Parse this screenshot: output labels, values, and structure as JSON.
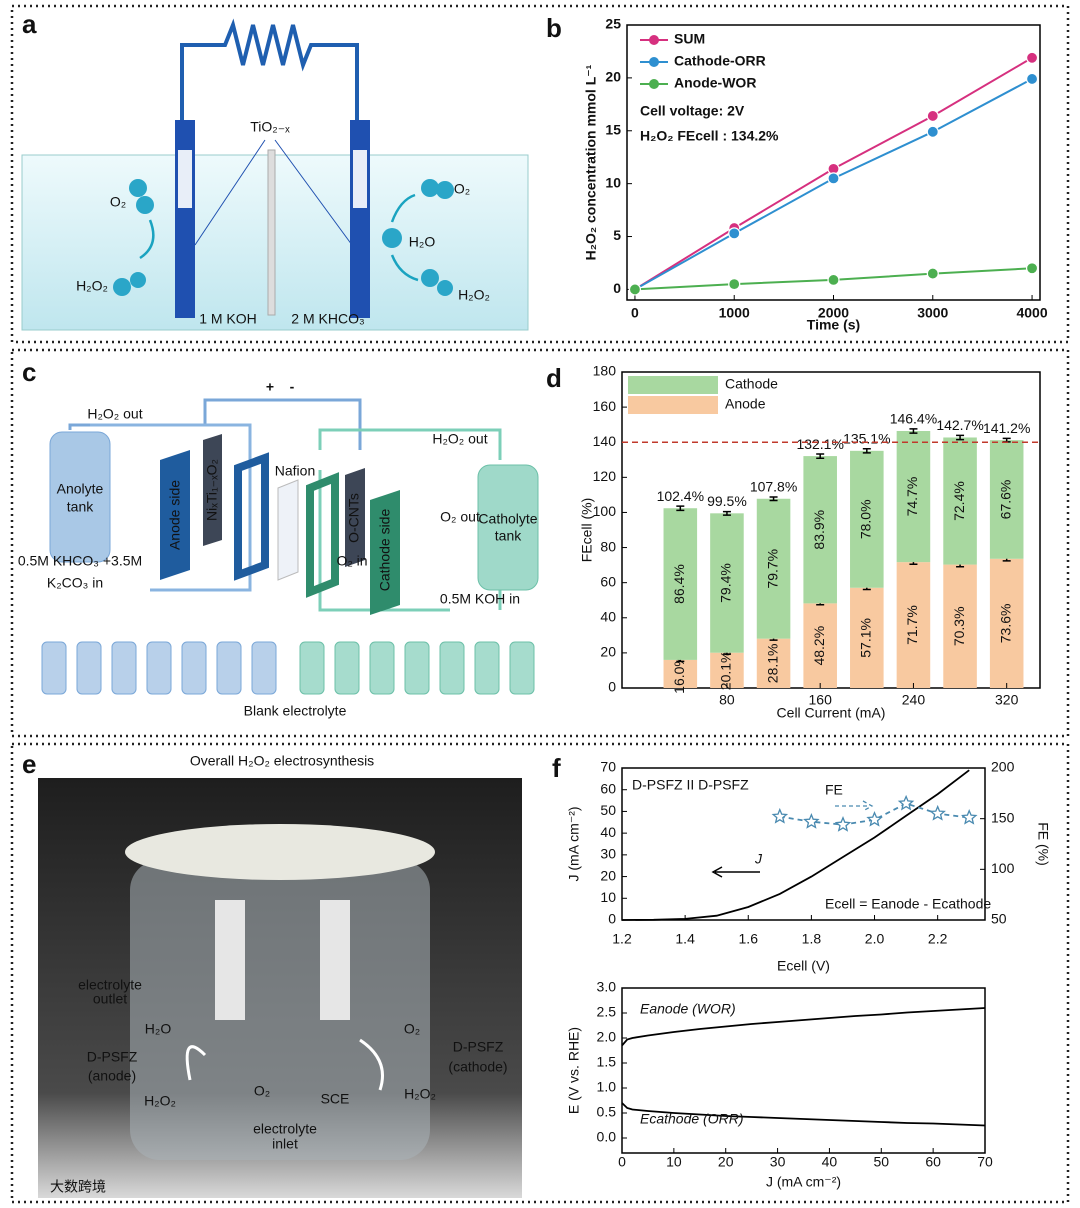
{
  "panel_labels": [
    "a",
    "b",
    "c",
    "d",
    "e",
    "f"
  ],
  "watermark": "大数跨境",
  "diagrams": {
    "a": {
      "labels": [
        "TiO₂₋ₓ",
        "O₂",
        "H₂O₂",
        "O₂",
        "H₂O",
        "H₂O₂",
        "1 M KOH",
        "2 M KHCO₃"
      ]
    },
    "c": {
      "labels": [
        "H₂O₂ out",
        "Anolyte",
        "tank",
        "0.5M KHCO₃ +3.5M",
        "K₂CO₃ in",
        "Anode side",
        "NiₓTi₁₋ₓO₂",
        "Nafion",
        "O-CNTs",
        "Cathode side",
        "O₂ out",
        "O₂ in",
        "H₂O₂ out",
        "Catholyte",
        "tank",
        "0.5M KOH in",
        "Blank electrolyte",
        "+",
        "-"
      ]
    },
    "e": {
      "title": "Overall H₂O₂ electrosynthesis",
      "labels": [
        "electrolyte",
        "outlet",
        "H₂O",
        "O₂",
        "D-PSFZ",
        "(anode)",
        "D-PSFZ",
        "(cathode)",
        "H₂O₂",
        "O₂",
        "SCE",
        "H₂O₂",
        "electrolyte",
        "inlet"
      ]
    }
  },
  "chart_data": [
    {
      "type": "line",
      "xlabel": "Time (s)",
      "ylabel": "H₂O₂ concentration mmol L⁻¹",
      "x": [
        0,
        1000,
        2000,
        3000,
        4000
      ],
      "series": [
        {
          "name": "SUM",
          "color": "#d6307f",
          "marker": "circle",
          "values": [
            0,
            5.8,
            11.4,
            16.4,
            21.9
          ]
        },
        {
          "name": "Cathode-ORR",
          "color": "#2e8fd0",
          "marker": "circle",
          "values": [
            0,
            5.3,
            10.5,
            14.9,
            19.9
          ]
        },
        {
          "name": "Anode-WOR",
          "color": "#4caf50",
          "marker": "circle",
          "values": [
            0,
            0.5,
            0.9,
            1.5,
            2.0
          ]
        }
      ],
      "xlim": [
        -80,
        4080
      ],
      "xticks": [
        0,
        1000,
        2000,
        3000,
        4000
      ],
      "ylim": [
        -1,
        25
      ],
      "yticks": [
        0,
        5,
        10,
        15,
        20,
        25
      ],
      "legend": "upper left",
      "annotations": [
        "Cell voltage: 2V",
        "H₂O₂ FEcell : 134.2%"
      ]
    },
    {
      "type": "bar",
      "xlabel": "Cell Current (mA)",
      "ylabel": "FEcell (%)",
      "categories": [
        null,
        "80",
        null,
        "160",
        null,
        "240",
        null,
        "320"
      ],
      "series": [
        {
          "name": "Anode",
          "color": "#f8c9a0",
          "values": [
            16.0,
            20.1,
            28.1,
            48.2,
            57.1,
            71.7,
            70.3,
            73.6
          ],
          "value_labels": [
            "16.0%",
            "20.1%",
            "28.1%",
            "48.2%",
            "57.1%",
            "71.7%",
            "70.3%",
            "73.6%"
          ],
          "errors": [
            0.8,
            0.8,
            0.8,
            0.8,
            1.0,
            1.2,
            1.2,
            1.2
          ]
        },
        {
          "name": "Cathode",
          "color": "#a8d8a0",
          "values": [
            86.4,
            79.4,
            79.7,
            83.9,
            78.0,
            74.7,
            72.4,
            67.6
          ],
          "value_labels": [
            "86.4%",
            "79.4%",
            "79.7%",
            "83.9%",
            "78.0%",
            "74.7%",
            "72.4%",
            "67.6%"
          ]
        }
      ],
      "totals": [
        102.4,
        99.5,
        107.8,
        132.1,
        135.1,
        146.4,
        142.7,
        141.2
      ],
      "total_labels": [
        "102.4%",
        "99.5%",
        "107.8%",
        "132.1%",
        "135.1%",
        "146.4%",
        "142.7%",
        "141.2%"
      ],
      "total_errors": [
        1.2,
        1.0,
        1.0,
        1.2,
        1.2,
        1.2,
        1.2,
        1.0
      ],
      "ref_line": 140,
      "ref_color": "#c0392b",
      "ylim": [
        0,
        180
      ],
      "yticks": [
        0,
        20,
        40,
        60,
        80,
        100,
        120,
        140,
        160,
        180
      ],
      "legend": "upper left"
    },
    {
      "type": "line",
      "xlabel": "Ecell (V)",
      "ylabel": "J (mA cm⁻²)",
      "y2label": "FE (%)",
      "y2color": "#4a8ab0",
      "x": [
        1.2,
        1.3,
        1.4,
        1.5,
        1.6,
        1.7,
        1.8,
        1.9,
        2.0,
        2.1,
        2.2,
        2.3
      ],
      "series": [
        {
          "name": "J",
          "color": "#000000",
          "values": [
            0,
            0.1,
            0.5,
            2,
            6,
            12,
            20,
            29,
            38,
            48,
            58,
            69
          ]
        },
        {
          "name": "FE",
          "color": "#4a8ab0",
          "marker": "star",
          "dashed": true,
          "axis": "y2",
          "values": [
            null,
            null,
            null,
            null,
            null,
            152,
            147,
            144,
            149,
            165,
            155,
            151
          ]
        }
      ],
      "xlim": [
        1.2,
        2.35
      ],
      "xticks": [
        1.2,
        1.4,
        1.6,
        1.8,
        {
          "value": 2,
          "label": "2.0"
        },
        2.2
      ],
      "ylim": [
        0,
        70
      ],
      "yticks": [
        0,
        10,
        20,
        30,
        40,
        50,
        60,
        70
      ],
      "y2lim": [
        50,
        200
      ],
      "y2ticks": [
        50,
        100,
        150,
        200
      ],
      "annotations": [
        "D-PSFZ II D-PSFZ",
        "Ecell = Eanode - Ecathode"
      ]
    },
    {
      "type": "line",
      "xlabel": "J (mA cm⁻²)",
      "ylabel": "E (V vs. RHE)",
      "x": [
        0,
        1,
        2,
        5,
        10,
        15,
        20,
        25,
        30,
        35,
        40,
        45,
        50,
        55,
        60,
        65,
        70
      ],
      "series": [
        {
          "name": "Eanode (WOR)",
          "color": "#000000",
          "values": [
            1.85,
            1.97,
            2.0,
            2.05,
            2.12,
            2.18,
            2.23,
            2.28,
            2.32,
            2.36,
            2.4,
            2.44,
            2.47,
            2.51,
            2.54,
            2.57,
            2.6
          ]
        },
        {
          "name": "Ecathode (ORR)",
          "color": "#000000",
          "values": [
            0.7,
            0.6,
            0.57,
            0.54,
            0.5,
            0.47,
            0.44,
            0.42,
            0.4,
            0.38,
            0.36,
            0.34,
            0.32,
            0.3,
            0.29,
            0.27,
            0.25
          ]
        }
      ],
      "xlim": [
        0,
        70
      ],
      "xticks": [
        0,
        10,
        20,
        30,
        40,
        50,
        60,
        70
      ],
      "ylim": [
        -0.3,
        3.0
      ],
      "yticks": [
        {
          "value": 0,
          "label": "0.0"
        },
        0.5,
        {
          "value": 1,
          "label": "1.0"
        },
        1.5,
        {
          "value": 2,
          "label": "2.0"
        },
        2.5,
        {
          "value": 3,
          "label": "3.0"
        }
      ]
    }
  ]
}
